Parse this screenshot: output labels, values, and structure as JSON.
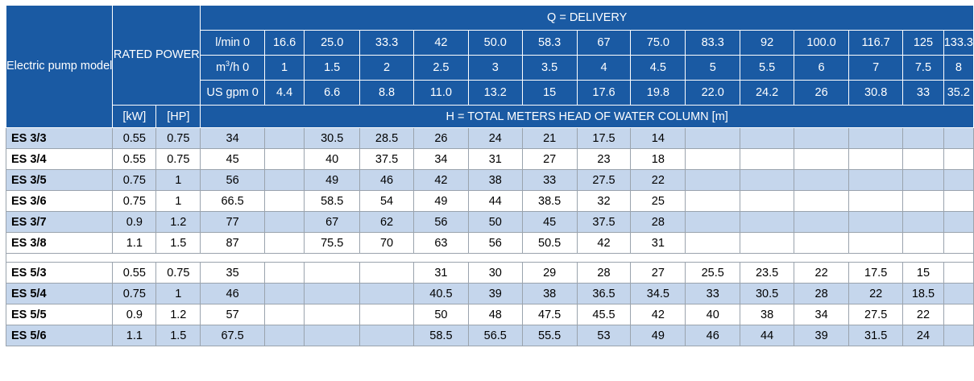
{
  "header": {
    "model_label": "Electric pump model",
    "power_label": "RATED POWER",
    "delivery_label": "Q = DELIVERY",
    "kw_label": "[kW]",
    "hp_label": "[HP]",
    "head_label": "H = TOTAL METERS HEAD OF WATER COLUMN [m]",
    "lmin_label": "l/min 0",
    "m3h_label_base": "m",
    "m3h_label_sup": "3",
    "m3h_label_rest": "/h 0",
    "gpm_label": "US gpm 0",
    "lmin": [
      "16.6",
      "25.0",
      "33.3",
      "42",
      "50.0",
      "58.3",
      "67",
      "75.0",
      "83.3",
      "92",
      "100.0",
      "116.7",
      "125",
      "133.3"
    ],
    "m3h": [
      "1",
      "1.5",
      "2",
      "2.5",
      "3",
      "3.5",
      "4",
      "4.5",
      "5",
      "5.5",
      "6",
      "7",
      "7.5",
      "8"
    ],
    "gpm": [
      "4.4",
      "6.6",
      "8.8",
      "11.0",
      "13.2",
      "15",
      "17.6",
      "19.8",
      "22.0",
      "24.2",
      "26",
      "30.8",
      "33",
      "35.2"
    ]
  },
  "group1": [
    {
      "model": "ES 3/3",
      "kw": "0.55",
      "hp": "0.75",
      "h": [
        "34",
        "",
        "30.5",
        "28.5",
        "26",
        "24",
        "21",
        "17.5",
        "14",
        "",
        "",
        "",
        "",
        "",
        ""
      ]
    },
    {
      "model": "ES 3/4",
      "kw": "0.55",
      "hp": "0.75",
      "h": [
        "45",
        "",
        "40",
        "37.5",
        "34",
        "31",
        "27",
        "23",
        "18",
        "",
        "",
        "",
        "",
        "",
        ""
      ]
    },
    {
      "model": "ES 3/5",
      "kw": "0.75",
      "hp": "1",
      "h": [
        "56",
        "",
        "49",
        "46",
        "42",
        "38",
        "33",
        "27.5",
        "22",
        "",
        "",
        "",
        "",
        "",
        ""
      ]
    },
    {
      "model": "ES 3/6",
      "kw": "0.75",
      "hp": "1",
      "h": [
        "66.5",
        "",
        "58.5",
        "54",
        "49",
        "44",
        "38.5",
        "32",
        "25",
        "",
        "",
        "",
        "",
        "",
        ""
      ]
    },
    {
      "model": "ES 3/7",
      "kw": "0.9",
      "hp": "1.2",
      "h": [
        "77",
        "",
        "67",
        "62",
        "56",
        "50",
        "45",
        "37.5",
        "28",
        "",
        "",
        "",
        "",
        "",
        ""
      ]
    },
    {
      "model": "ES 3/8",
      "kw": "1.1",
      "hp": "1.5",
      "h": [
        "87",
        "",
        "75.5",
        "70",
        "63",
        "56",
        "50.5",
        "42",
        "31",
        "",
        "",
        "",
        "",
        "",
        ""
      ]
    }
  ],
  "group2": [
    {
      "model": "ES 5/3",
      "kw": "0.55",
      "hp": "0.75",
      "h": [
        "35",
        "",
        "",
        "",
        "31",
        "30",
        "29",
        "28",
        "27",
        "25.5",
        "23.5",
        "22",
        "17.5",
        "15",
        ""
      ]
    },
    {
      "model": "ES 5/4",
      "kw": "0.75",
      "hp": "1",
      "h": [
        "46",
        "",
        "",
        "",
        "40.5",
        "39",
        "38",
        "36.5",
        "34.5",
        "33",
        "30.5",
        "28",
        "22",
        "18.5",
        ""
      ]
    },
    {
      "model": "ES 5/5",
      "kw": "0.9",
      "hp": "1.2",
      "h": [
        "57",
        "",
        "",
        "",
        "50",
        "48",
        "47.5",
        "45.5",
        "42",
        "40",
        "38",
        "34",
        "27.5",
        "22",
        ""
      ]
    },
    {
      "model": "ES 5/6",
      "kw": "1.1",
      "hp": "1.5",
      "h": [
        "67.5",
        "",
        "",
        "",
        "58.5",
        "56.5",
        "55.5",
        "53",
        "49",
        "46",
        "44",
        "39",
        "31.5",
        "24",
        ""
      ]
    }
  ]
}
